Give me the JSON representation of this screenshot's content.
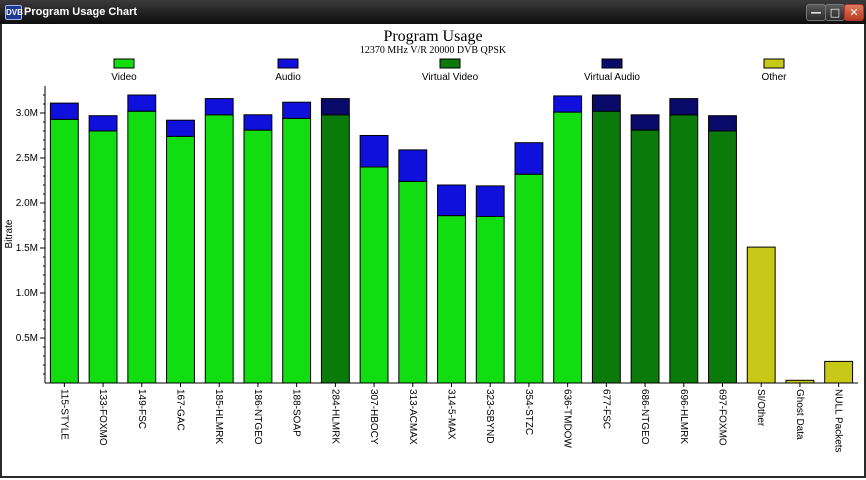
{
  "window": {
    "title": "Program Usage Chart",
    "icon_text": "DVB",
    "controls": [
      "minimize",
      "maximize",
      "close"
    ]
  },
  "chart_data": {
    "type": "bar",
    "stacked": true,
    "title": "Program Usage",
    "subtitle": "12370 MHz V/R 20000 DVB QPSK",
    "ylabel": "Bitrate",
    "xlabel": "",
    "ylim": [
      0,
      3.3
    ],
    "yticks": [
      0.5,
      1.0,
      1.5,
      2.0,
      2.5,
      3.0
    ],
    "ytick_labels": [
      "0.5M",
      "1.0M",
      "1.5M",
      "2.0M",
      "2.5M",
      "3.0M"
    ],
    "legend_position": "top",
    "legend": [
      {
        "name": "Video",
        "color": "#11dd11"
      },
      {
        "name": "Audio",
        "color": "#1010dd"
      },
      {
        "name": "Virtual Video",
        "color": "#0a7a0a"
      },
      {
        "name": "Virtual Audio",
        "color": "#0a0a6a"
      },
      {
        "name": "Other",
        "color": "#c8c818"
      }
    ],
    "categories": [
      "115-STYLE",
      "133-FOXMO",
      "149-FSC",
      "167-GAC",
      "185-HLMRK",
      "186-NTGEO",
      "188-SOAP",
      "284-HLMRK",
      "307-HBOCY",
      "313-ACMAX",
      "314-5-MAX",
      "323-SBYND",
      "354-STZC",
      "636-TMDOW",
      "677-FSC",
      "686-NTGEO",
      "696-HLMRK",
      "697-FOXMO",
      "SI/Other",
      "Ghost Data",
      "NULL Packets"
    ],
    "series": [
      {
        "name": "Video",
        "values": [
          2.93,
          2.8,
          3.02,
          2.74,
          2.98,
          2.81,
          2.94,
          0,
          2.4,
          2.24,
          1.86,
          1.85,
          2.32,
          3.01,
          0,
          0,
          0,
          0,
          0,
          0,
          0
        ]
      },
      {
        "name": "Audio",
        "values": [
          0.18,
          0.17,
          0.18,
          0.18,
          0.18,
          0.17,
          0.18,
          0,
          0.35,
          0.35,
          0.34,
          0.34,
          0.35,
          0.18,
          0,
          0,
          0,
          0,
          0,
          0,
          0
        ]
      },
      {
        "name": "Virtual Video",
        "values": [
          0,
          0,
          0,
          0,
          0,
          0,
          0,
          2.98,
          0,
          0,
          0,
          0,
          0,
          0,
          3.02,
          2.81,
          2.98,
          2.8,
          0,
          0,
          0
        ]
      },
      {
        "name": "Virtual Audio",
        "values": [
          0,
          0,
          0,
          0,
          0,
          0,
          0,
          0.18,
          0,
          0,
          0,
          0,
          0,
          0,
          0.18,
          0.17,
          0.18,
          0.17,
          0,
          0,
          0
        ]
      },
      {
        "name": "Other",
        "values": [
          0,
          0,
          0,
          0,
          0,
          0,
          0,
          0,
          0,
          0,
          0,
          0,
          0,
          0,
          0,
          0,
          0,
          0,
          1.51,
          0.03,
          0.24
        ]
      }
    ]
  }
}
